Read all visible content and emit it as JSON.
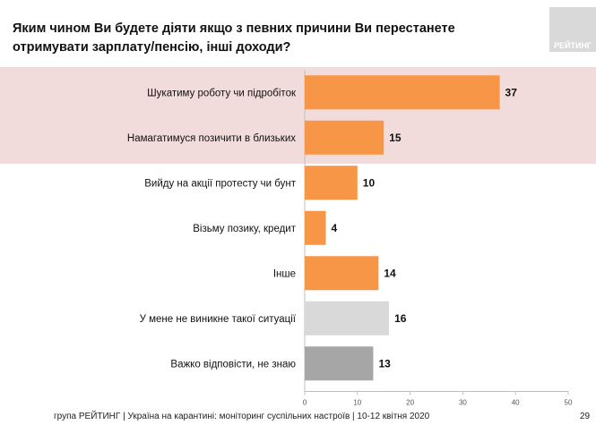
{
  "title": "Яким чином Ви будете діяти якщо з певних причини Ви перестанете отримувати зарплату/пенсію, інші доходи?",
  "logo_text": "РЕЙТИНГ",
  "footer": "група РЕЙТИНГ | Україна на карантині: моніторинг суспільних настроїв  | 10-12 квітня  2020",
  "page_number": "29",
  "chart_data": {
    "type": "bar",
    "orientation": "horizontal",
    "categories": [
      "Шукатиму роботу чи підробіток",
      "Намагатимуся позичити в близьких",
      "Вийду на акції протесту чи бунт",
      "Візьму позику, кредит",
      "Інше",
      "У мене не виникне такої ситуації",
      "Важко відповісти, не знаю"
    ],
    "values": [
      37,
      15,
      10,
      4,
      14,
      16,
      13
    ],
    "colors": [
      "#f79646",
      "#f79646",
      "#f79646",
      "#f79646",
      "#f79646",
      "#d9d9d9",
      "#a6a6a6"
    ],
    "highlighted_rows": [
      0,
      1
    ],
    "highlight_color": "#f2dcdb",
    "xlim": [
      0,
      50
    ],
    "xticks": [
      0,
      10,
      20,
      30,
      40,
      50
    ],
    "grid": false
  }
}
